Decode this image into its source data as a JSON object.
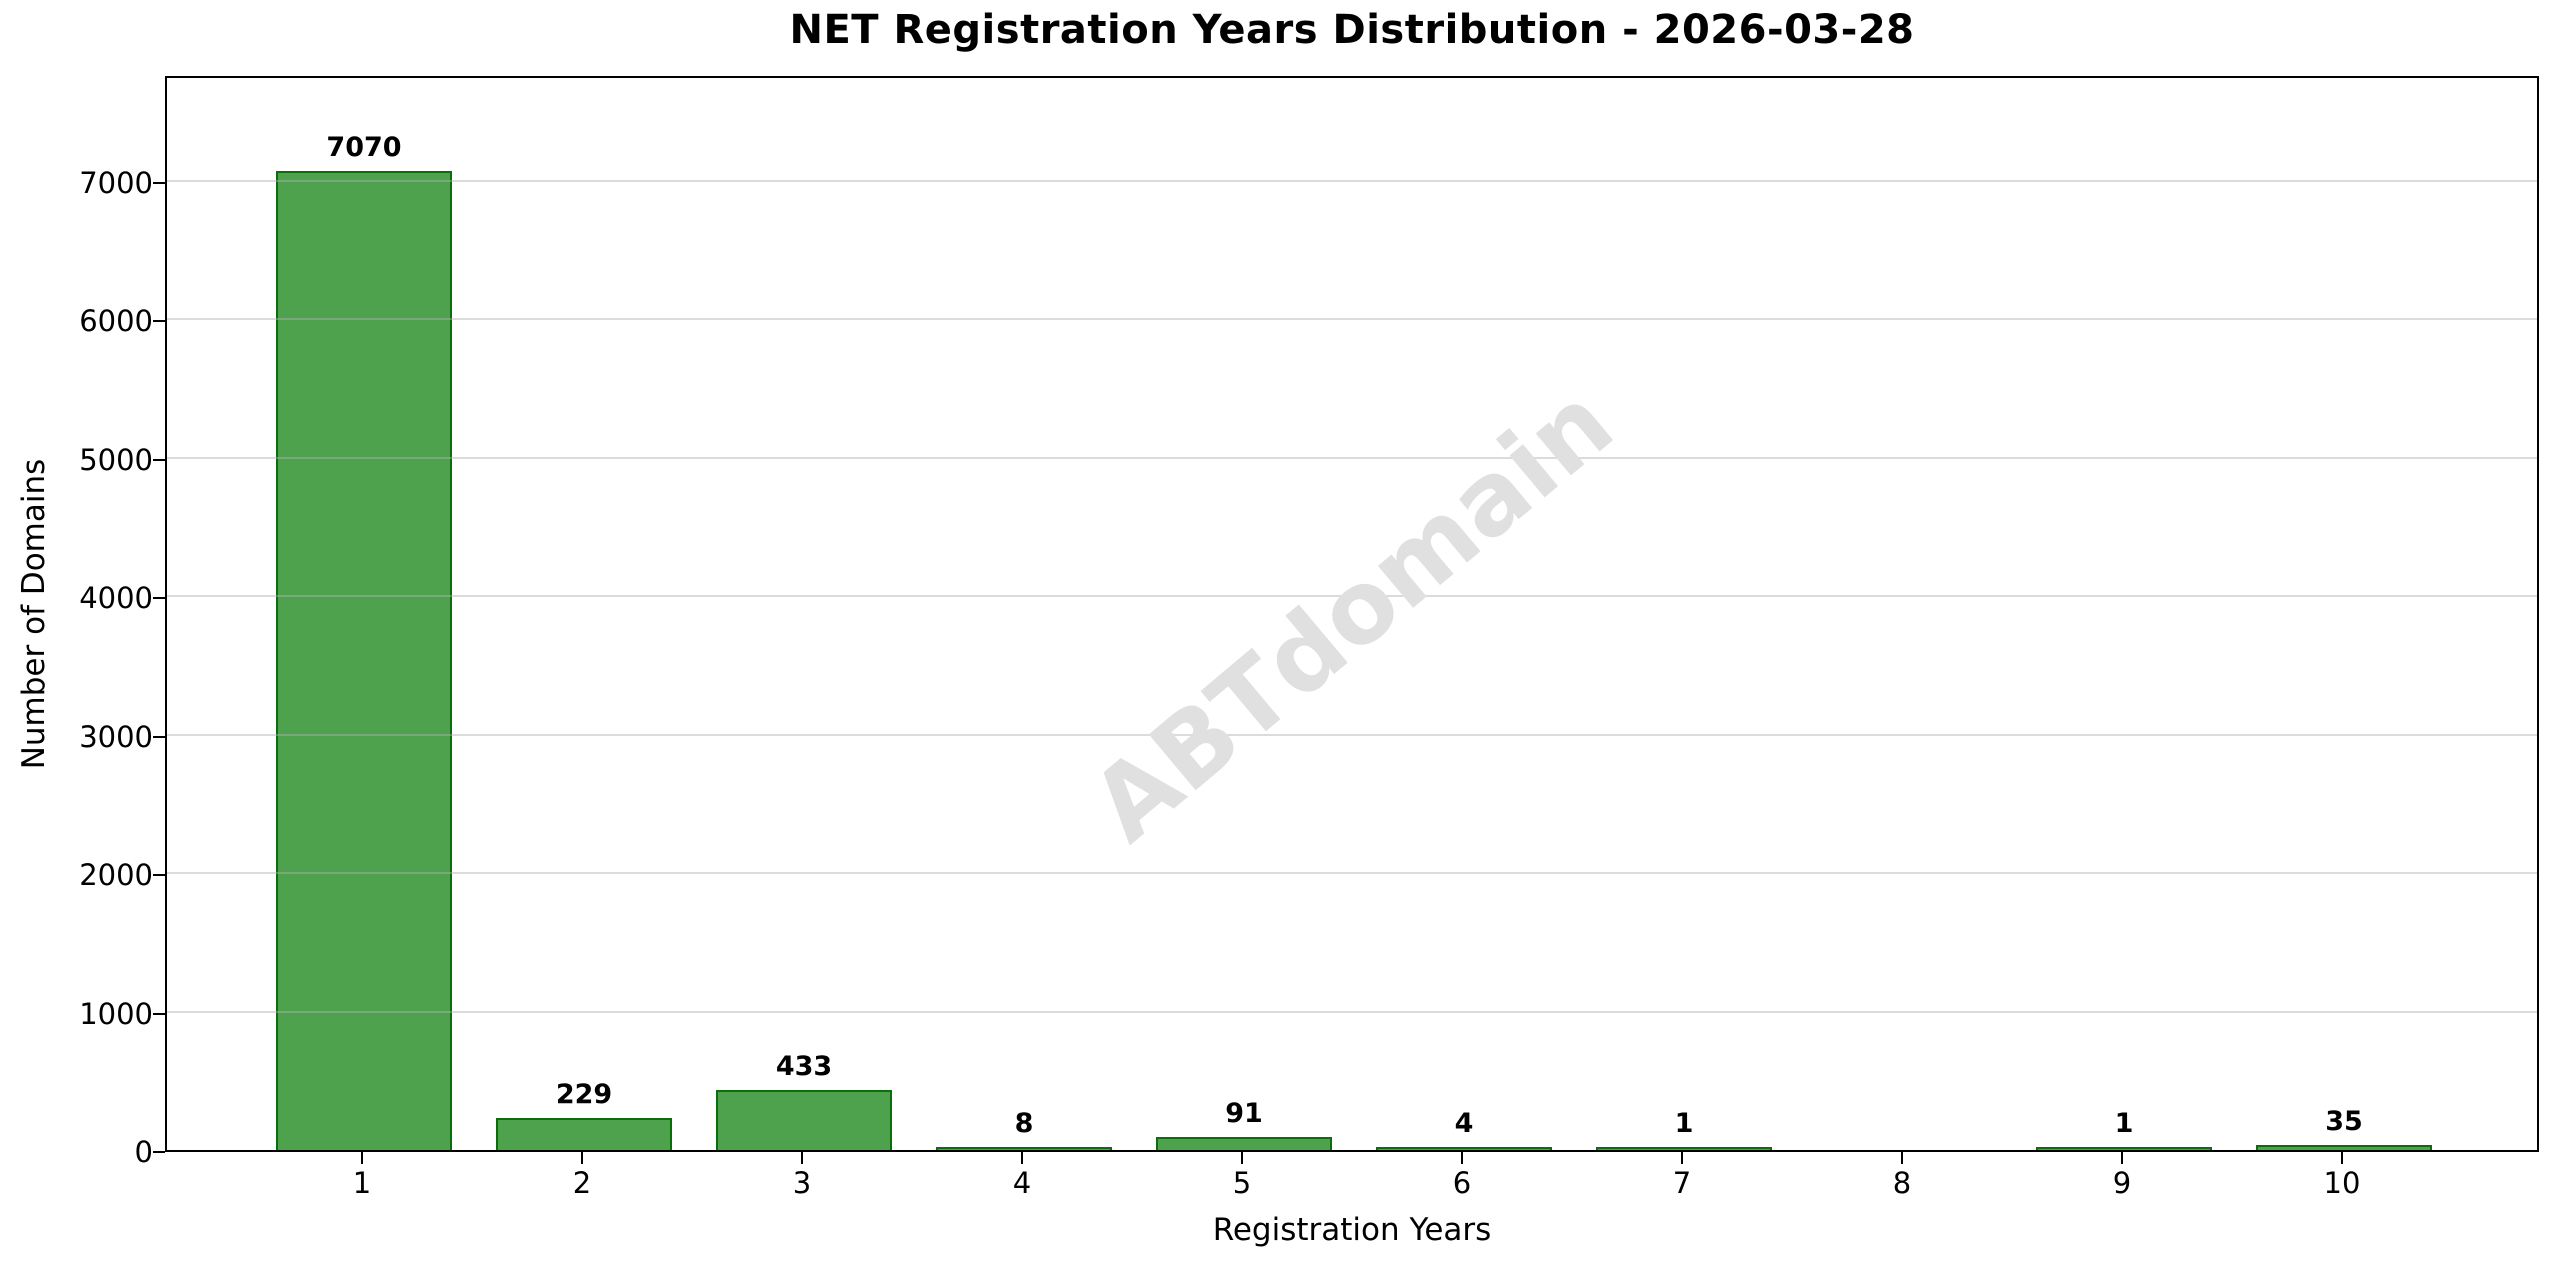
{
  "title": "NET Registration Years Distribution - 2026-03-28",
  "watermark_text": "ABTdomain",
  "chart_data": {
    "type": "bar",
    "title": "NET Registration Years Distribution - 2026-03-28",
    "xlabel": "Registration Years",
    "ylabel": "Number of Domains",
    "categories": [
      "1",
      "2",
      "3",
      "4",
      "5",
      "6",
      "7",
      "8",
      "9",
      "10"
    ],
    "values": [
      7070,
      229,
      433,
      8,
      91,
      4,
      1,
      0,
      1,
      35
    ],
    "bar_labels": [
      "7070",
      "229",
      "433",
      "8",
      "91",
      "4",
      "1",
      "",
      "1",
      "35"
    ],
    "yticks": [
      0,
      1000,
      2000,
      3000,
      4000,
      5000,
      6000,
      7000
    ],
    "ylim": [
      0,
      7770
    ],
    "grid": "horizontal",
    "legend": "none",
    "bar_fill_color": "rgba(34,139,34,0.8)",
    "bar_edge_color": "rgba(0,100,0,0.85)",
    "grid_color": "rgba(176,176,176,0.45)",
    "watermark": {
      "text": "ABTdomain",
      "color": "#e0e0e0",
      "angle_deg": -40
    }
  }
}
